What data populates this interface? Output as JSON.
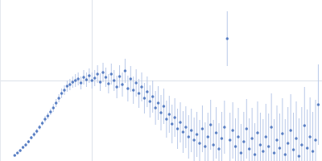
{
  "chart_data": {
    "type": "scatter",
    "color": "#3a66b8",
    "error_color": "#b8c8e8",
    "marker": "circle",
    "xlim": [
      0,
      3.5
    ],
    "ylim": [
      0,
      2
    ],
    "xticks": [
      1
    ],
    "yticks": [
      1
    ],
    "grid": true,
    "tick_labels": false,
    "x": [
      0.16,
      0.19,
      0.22,
      0.25,
      0.28,
      0.31,
      0.34,
      0.37,
      0.4,
      0.43,
      0.46,
      0.49,
      0.52,
      0.55,
      0.58,
      0.61,
      0.64,
      0.67,
      0.7,
      0.73,
      0.76,
      0.79,
      0.82,
      0.85,
      0.88,
      0.91,
      0.94,
      0.97,
      1.0,
      1.03,
      1.06,
      1.09,
      1.12,
      1.15,
      1.18,
      1.21,
      1.24,
      1.27,
      1.3,
      1.33,
      1.36,
      1.39,
      1.42,
      1.45,
      1.48,
      1.51,
      1.54,
      1.57,
      1.6,
      1.63,
      1.66,
      1.69,
      1.72,
      1.75,
      1.78,
      1.81,
      1.84,
      1.87,
      1.9,
      1.93,
      1.96,
      1.99,
      2.02,
      2.05,
      2.08,
      2.11,
      2.14,
      2.17,
      2.2,
      2.23,
      2.26,
      2.29,
      2.32,
      2.35,
      2.38,
      2.41,
      2.44,
      2.47,
      2.5,
      2.53,
      2.56,
      2.59,
      2.62,
      2.65,
      2.68,
      2.71,
      2.74,
      2.77,
      2.8,
      2.83,
      2.86,
      2.89,
      2.92,
      2.95,
      2.98,
      3.01,
      3.04,
      3.07,
      3.1,
      3.13,
      3.16,
      3.19,
      3.22,
      3.25,
      3.28,
      3.31,
      3.34,
      3.37,
      3.4,
      3.43,
      3.46
    ],
    "values": [
      0.07,
      0.1,
      0.13,
      0.17,
      0.2,
      0.24,
      0.29,
      0.33,
      0.37,
      0.42,
      0.47,
      0.52,
      0.56,
      0.61,
      0.66,
      0.72,
      0.78,
      0.84,
      0.88,
      0.93,
      0.95,
      0.98,
      1.0,
      1.02,
      0.97,
      1.04,
      1.01,
      1.06,
      1.0,
      1.03,
      1.08,
      0.98,
      1.1,
      1.04,
      0.96,
      1.08,
      1.0,
      0.92,
      1.05,
      0.95,
      1.12,
      0.9,
      1.02,
      0.88,
      0.97,
      0.84,
      0.92,
      0.78,
      0.86,
      0.74,
      0.8,
      0.66,
      0.72,
      0.6,
      0.68,
      0.52,
      0.58,
      0.46,
      0.54,
      0.4,
      0.48,
      0.36,
      0.42,
      0.3,
      0.38,
      0.26,
      0.33,
      0.22,
      0.4,
      0.18,
      0.3,
      0.45,
      0.2,
      0.35,
      0.15,
      0.28,
      0.42,
      1.52,
      0.26,
      0.38,
      0.18,
      0.3,
      0.1,
      0.24,
      0.4,
      0.15,
      0.28,
      0.08,
      0.35,
      0.2,
      0.12,
      0.3,
      0.18,
      0.42,
      0.1,
      0.26,
      0.16,
      0.34,
      0.08,
      0.22,
      0.38,
      0.14,
      0.28,
      0.06,
      0.2,
      0.44,
      0.16,
      0.3,
      0.12,
      0.26,
      0.7
    ],
    "errors": [
      0.01,
      0.01,
      0.015,
      0.015,
      0.02,
      0.02,
      0.02,
      0.03,
      0.03,
      0.03,
      0.03,
      0.04,
      0.04,
      0.04,
      0.05,
      0.05,
      0.05,
      0.06,
      0.06,
      0.07,
      0.07,
      0.07,
      0.08,
      0.08,
      0.08,
      0.09,
      0.09,
      0.09,
      0.1,
      0.1,
      0.11,
      0.11,
      0.12,
      0.12,
      0.12,
      0.13,
      0.13,
      0.14,
      0.14,
      0.15,
      0.15,
      0.16,
      0.16,
      0.17,
      0.17,
      0.18,
      0.18,
      0.19,
      0.19,
      0.2,
      0.2,
      0.21,
      0.21,
      0.22,
      0.22,
      0.23,
      0.23,
      0.24,
      0.24,
      0.25,
      0.25,
      0.26,
      0.26,
      0.27,
      0.27,
      0.28,
      0.28,
      0.29,
      0.29,
      0.3,
      0.3,
      0.31,
      0.31,
      0.32,
      0.32,
      0.33,
      0.33,
      0.34,
      0.34,
      0.35,
      0.35,
      0.36,
      0.36,
      0.37,
      0.37,
      0.38,
      0.38,
      0.39,
      0.39,
      0.4,
      0.4,
      0.41,
      0.41,
      0.42,
      0.42,
      0.43,
      0.43,
      0.44,
      0.44,
      0.45,
      0.45,
      0.46,
      0.46,
      0.47,
      0.47,
      0.48,
      0.48,
      0.49,
      0.49,
      0.5,
      0.5
    ]
  }
}
